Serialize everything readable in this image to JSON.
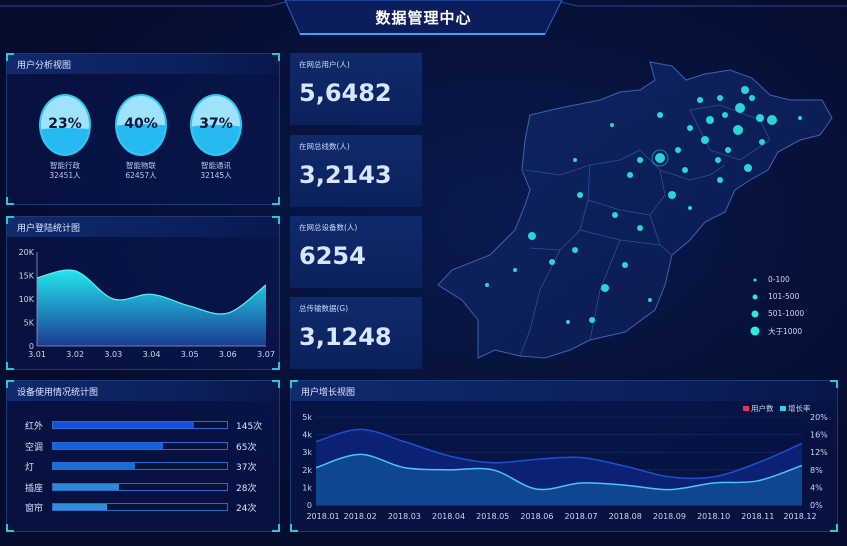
{
  "header": {
    "title": "数据管理中心"
  },
  "user_analysis": {
    "title": "用户分析视图",
    "items": [
      {
        "percent": "23%",
        "fill": 0.23,
        "name": "智能行政",
        "count": "32451人"
      },
      {
        "percent": "40%",
        "fill": 0.4,
        "name": "智能物联",
        "count": "62457人"
      },
      {
        "percent": "37%",
        "fill": 0.37,
        "name": "智能通讯",
        "count": "32145人"
      }
    ]
  },
  "stats": [
    {
      "label": "在网总用户(人)",
      "value": "5,6482"
    },
    {
      "label": "在网总线数(人)",
      "value": "3,2143"
    },
    {
      "label": "在网总设备数(人)",
      "value": "6254"
    },
    {
      "label": "总传输数据(G)",
      "value": "3,1248"
    }
  ],
  "map": {
    "legend": [
      {
        "label": "0-100"
      },
      {
        "label": "101-500"
      },
      {
        "label": "501-1000"
      },
      {
        "label": "大于1000"
      }
    ],
    "dot_color": "#2ee8e8"
  },
  "device_usage": {
    "title": "设备使用情况统计图",
    "items": [
      {
        "label": "红外",
        "value": "145次",
        "fill_percent": 81,
        "color": "#1550e0"
      },
      {
        "label": "空调",
        "value": "65次",
        "fill_percent": 63,
        "color": "#1563d6"
      },
      {
        "label": "灯",
        "value": "37次",
        "fill_percent": 47,
        "color": "#1a6fd0"
      },
      {
        "label": "插座",
        "value": "28次",
        "fill_percent": 38,
        "color": "#2a8ad8"
      },
      {
        "label": "窗帘",
        "value": "24次",
        "fill_percent": 31,
        "color": "#2f90d8"
      }
    ]
  },
  "chart_data": [
    {
      "type": "area",
      "title": "用户登陆统计图",
      "categories": [
        "3.01",
        "3.02",
        "3.03",
        "3.04",
        "3.05",
        "3.06",
        "3.07"
      ],
      "values": [
        14500,
        16000,
        10000,
        11000,
        8500,
        7000,
        13000
      ],
      "yticks": [
        "0",
        "5K",
        "10K",
        "15K",
        "20K"
      ],
      "ylim": [
        0,
        20000
      ],
      "grid": false
    },
    {
      "type": "area",
      "title": "用户增长视图",
      "categories": [
        "2018.01",
        "2018.02",
        "2018.03",
        "2018.04",
        "2018.05",
        "2018.06",
        "2018.07",
        "2018.08",
        "2018.09",
        "2018.10",
        "2018.11",
        "2018.12"
      ],
      "series": [
        {
          "name": "用户数",
          "axis": "left",
          "values": [
            3600,
            4300,
            3600,
            2800,
            2400,
            2600,
            2700,
            2200,
            1600,
            1600,
            2400,
            3500
          ],
          "legend_color": "#e8344e",
          "line_color": "#1e4fd0"
        },
        {
          "name": "增长率",
          "axis": "right",
          "values": [
            8.5,
            11.5,
            8.5,
            8,
            8,
            3.6,
            5,
            4.5,
            3.5,
            5,
            5.5,
            9
          ],
          "legend_color": "#2ed0e8",
          "line_color": "#4cc6f0"
        }
      ],
      "yticks_left": [
        "0",
        "1k",
        "2k",
        "3k",
        "4k",
        "5k"
      ],
      "ylim_left": [
        0,
        5000
      ],
      "yticks_right": [
        "0%",
        "4%",
        "8%",
        "12%",
        "16%",
        "20%"
      ],
      "ylim_right": [
        0,
        20
      ],
      "grid": true,
      "legend": "top-right"
    }
  ]
}
